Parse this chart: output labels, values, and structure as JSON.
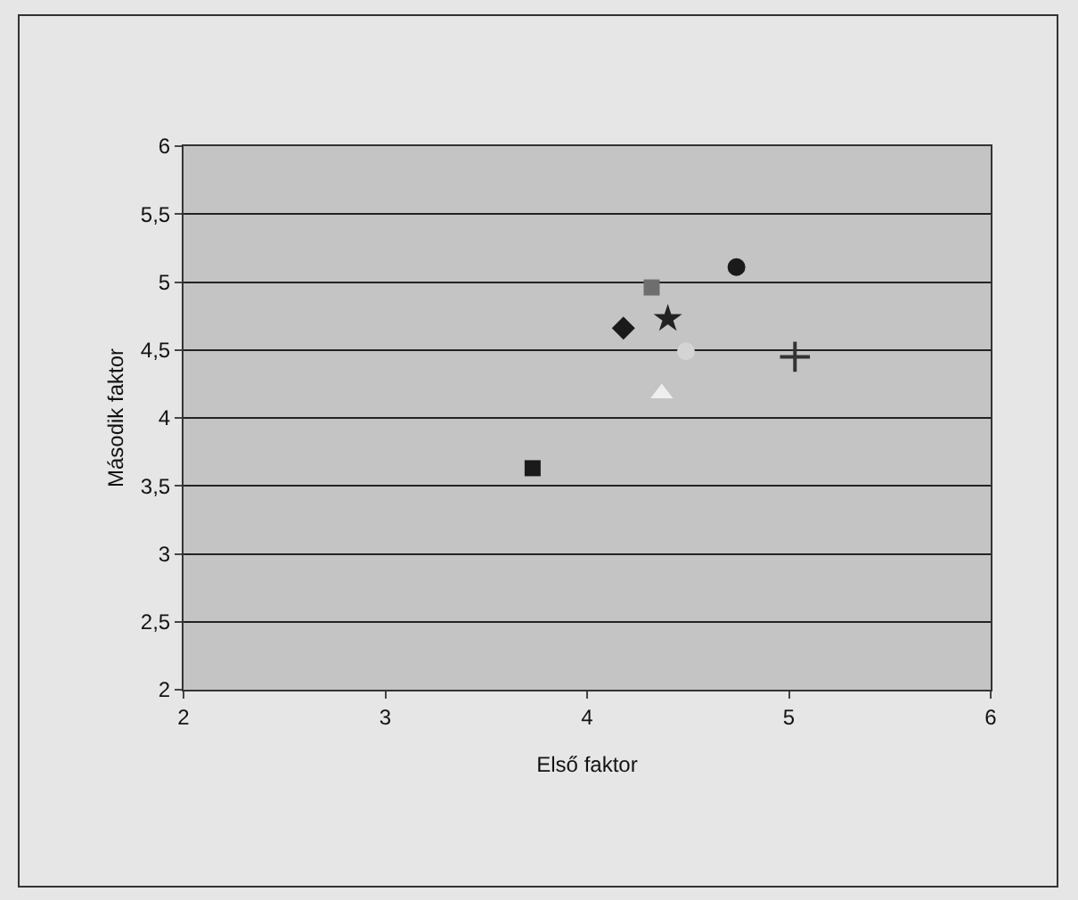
{
  "chart_data": {
    "type": "scatter",
    "xlabel": "Első faktor",
    "ylabel": "Második faktor",
    "xlim": [
      2,
      6
    ],
    "xticks": [
      2,
      3,
      4,
      5,
      6
    ],
    "ylim": [
      2,
      6
    ],
    "yticks": [
      2,
      {
        "value": 2.5,
        "label": "2,5"
      },
      3,
      {
        "value": 3.5,
        "label": "3,5"
      },
      4,
      {
        "value": 4.5,
        "label": "4,5"
      },
      5,
      {
        "value": 5.5,
        "label": "5,5"
      },
      6
    ],
    "grid": "y",
    "series": [
      {
        "x": [
          4.18
        ],
        "values": [
          4.66
        ],
        "color": "#1a1a1a",
        "marker": "diamond"
      },
      {
        "x": [
          4.32
        ],
        "values": [
          4.96
        ],
        "color": "#6e6e6e",
        "marker": "square"
      },
      {
        "x": [
          4.4
        ],
        "values": [
          4.73
        ],
        "color": "#222222",
        "marker": "star"
      },
      {
        "x": [
          4.74
        ],
        "values": [
          5.11
        ],
        "color": "#1a1a1a",
        "marker": "circle"
      },
      {
        "x": [
          4.37
        ],
        "values": [
          4.18
        ],
        "color": "#eeeeee",
        "marker": "triangle"
      },
      {
        "x": [
          5.03
        ],
        "values": [
          4.45
        ],
        "color": "#333333",
        "marker": "cross"
      },
      {
        "x": [
          3.73
        ],
        "values": [
          3.63
        ],
        "color": "#1a1a1a",
        "marker": "square"
      },
      {
        "x": [
          4.49
        ],
        "values": [
          4.49
        ],
        "color": "#d4d4d4",
        "marker": "circle"
      }
    ]
  }
}
